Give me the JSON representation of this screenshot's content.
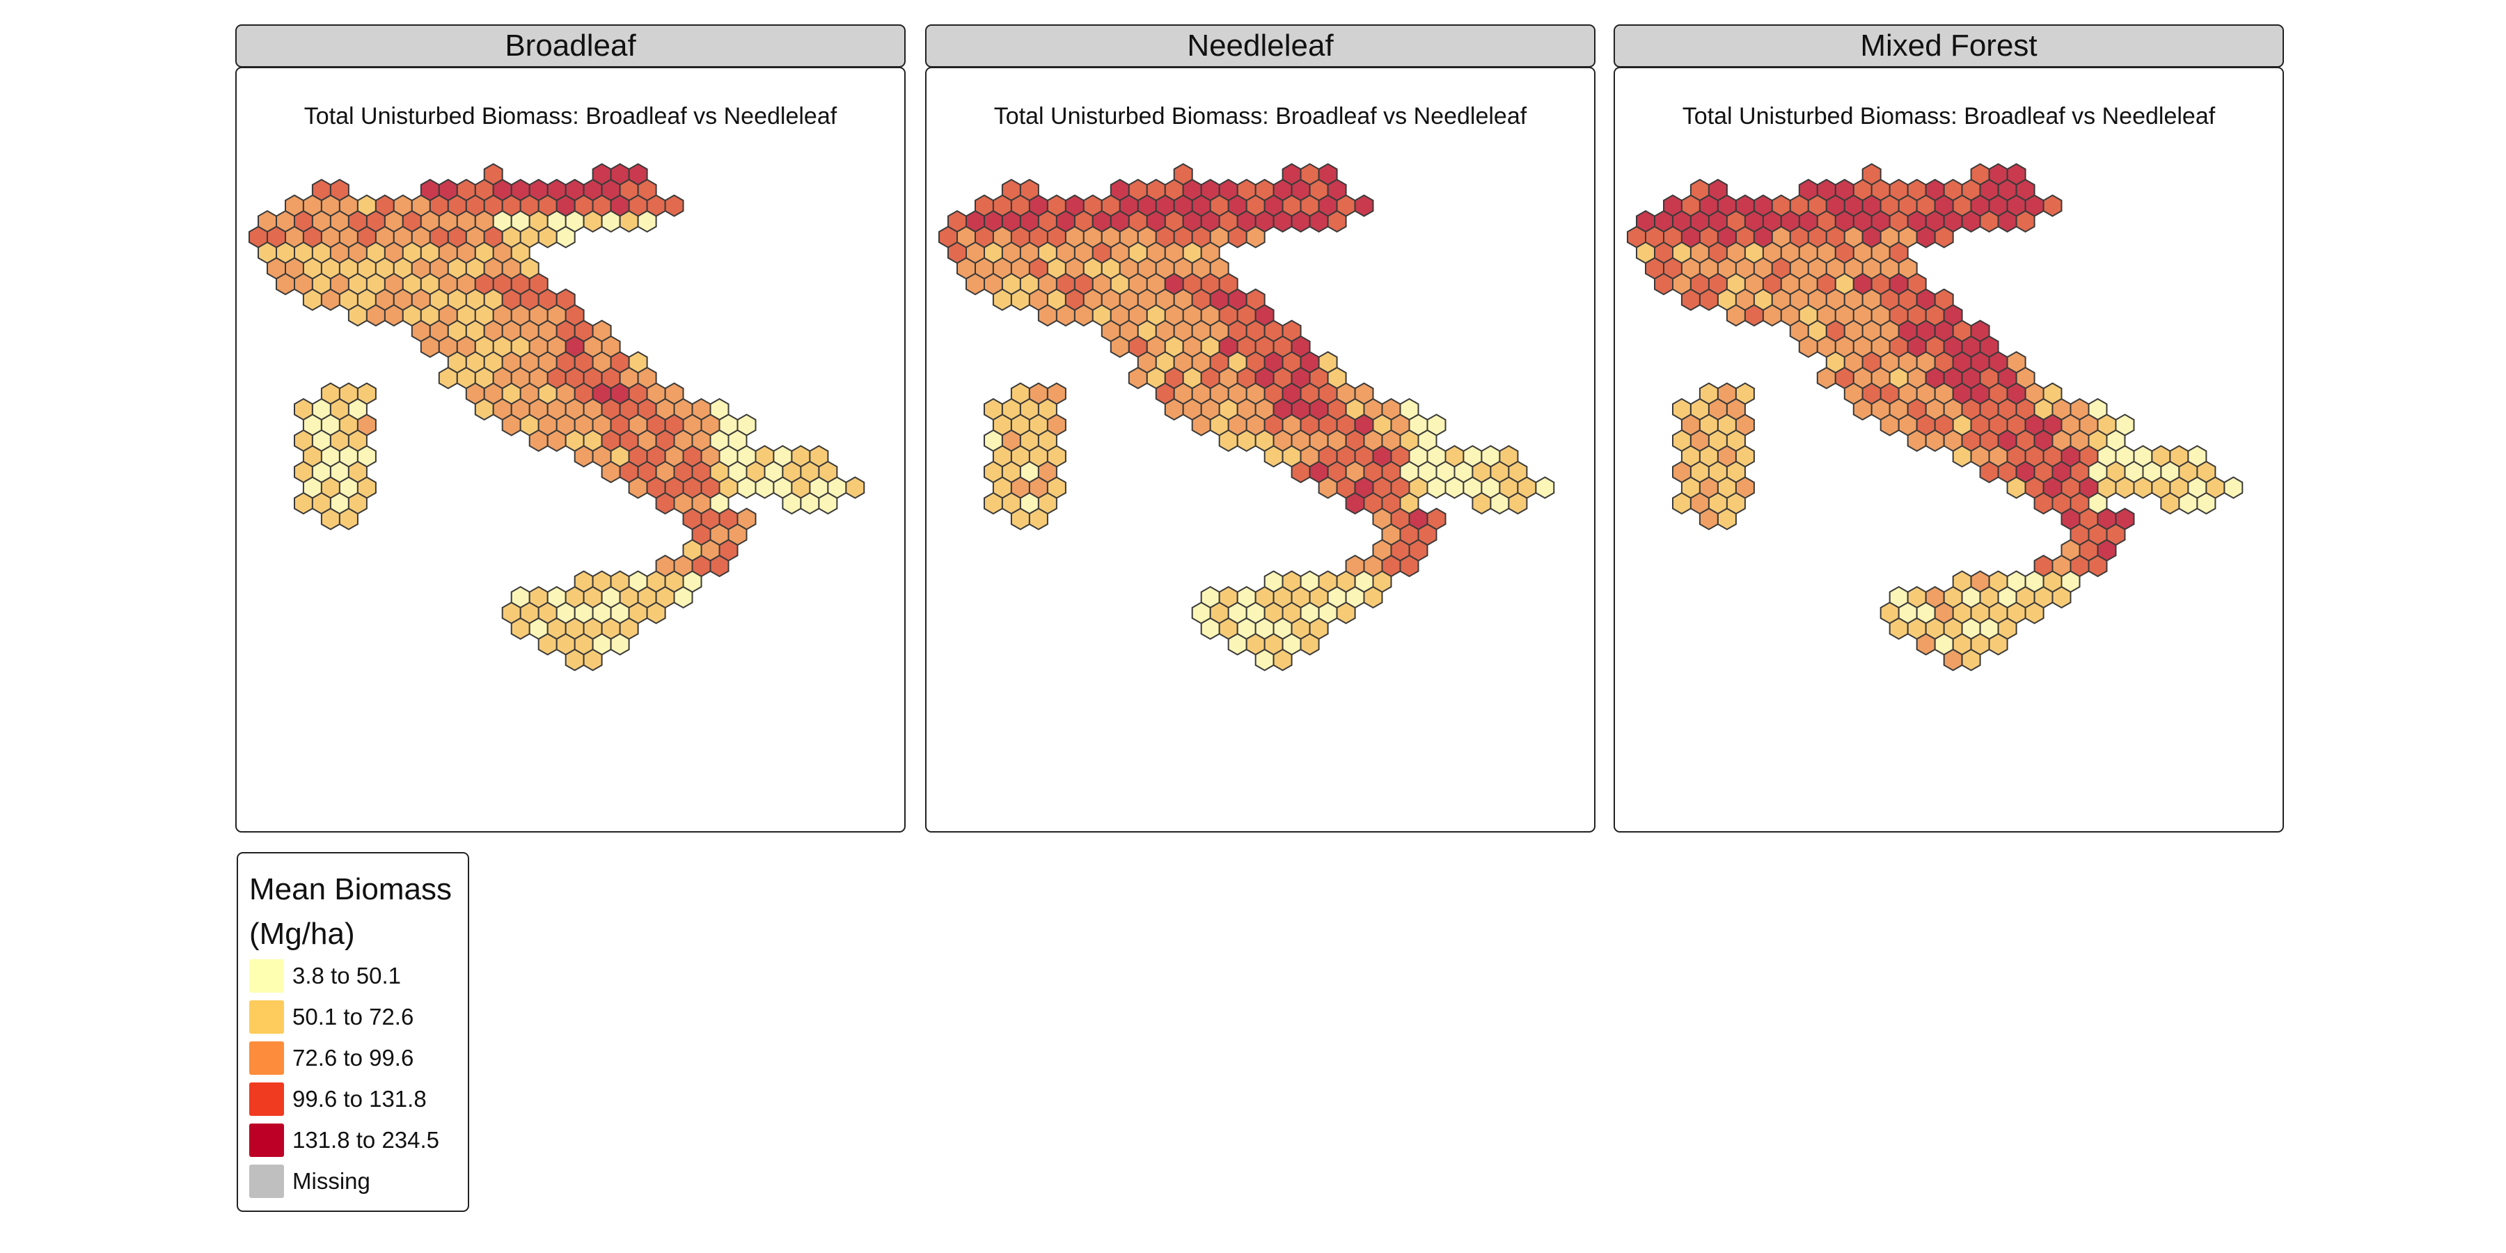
{
  "map_title": "Total Unisturbed Biomass: Broadleaf vs Needleleaf",
  "panels": [
    {
      "id": "broadleaf",
      "label": "Broadleaf"
    },
    {
      "id": "needleleaf",
      "label": "Needleleaf"
    },
    {
      "id": "mixed",
      "label": "Mixed Forest"
    }
  ],
  "legend": {
    "title_line1": "Mean Biomass",
    "title_line2": "(Mg/ha)",
    "items": [
      {
        "label": "3.8 to 50.1",
        "color": "#ffffb2"
      },
      {
        "label": "50.1 to 72.6",
        "color": "#fecc5c"
      },
      {
        "label": "72.6 to 99.6",
        "color": "#fd8d3c"
      },
      {
        "label": "99.6 to 131.8",
        "color": "#f03b20"
      },
      {
        "label": "131.8 to 234.5",
        "color": "#bd0026"
      },
      {
        "label": "Missing",
        "color": "#bfbfbf"
      }
    ]
  },
  "hex_fill_colors": [
    "#fbf5b7",
    "#f7cb76",
    "#f0a064",
    "#e26a4f",
    "#c93a4e"
  ],
  "hex_outline_color": "#3a3a3a"
}
